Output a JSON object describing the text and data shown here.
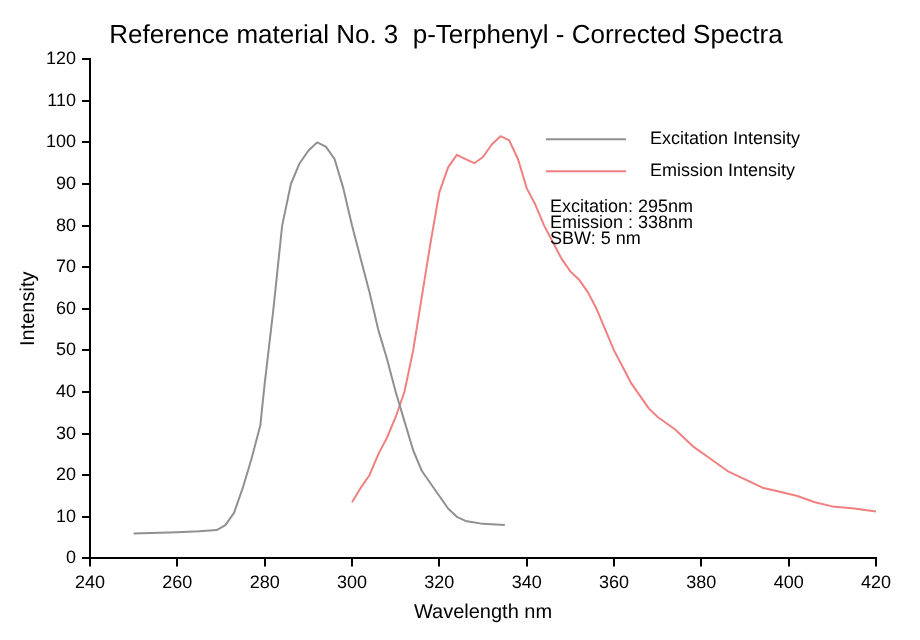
{
  "chart_data": {
    "type": "line",
    "title": "Reference material No. 3  p-Terphenyl - Corrected Spectra",
    "xlabel": "Wavelength nm",
    "ylabel": "Intensity",
    "annotations": [
      "Excitation: 295nm\nEmission : 338nm\nSBW: 5 nm"
    ],
    "xlim": [
      240,
      420
    ],
    "xticks": [
      240,
      260,
      280,
      300,
      320,
      340,
      360,
      380,
      400,
      420
    ],
    "ylim": [
      0,
      120
    ],
    "yticks": [
      0,
      10,
      20,
      30,
      40,
      50,
      60,
      70,
      80,
      90,
      100,
      110,
      120
    ],
    "grid": false,
    "legend": "top right",
    "marker": "none",
    "line_style": "solid",
    "series": [
      {
        "name": "Excitation Intensity",
        "color": "#909090",
        "x": [
          250,
          260,
          265,
          269,
          271,
          273,
          275,
          277,
          279,
          280,
          282,
          284,
          286,
          288,
          290,
          292,
          294,
          296,
          298,
          300,
          302,
          304,
          306,
          308,
          310,
          312,
          314,
          316,
          318,
          320,
          322,
          324,
          326,
          330,
          335
        ],
        "values": [
          6,
          6.3,
          6.5,
          6.8,
          8,
          11,
          17,
          24,
          32,
          42,
          60,
          80,
          90,
          95,
          98,
          100,
          99,
          96,
          89,
          80,
          72,
          64,
          55,
          48,
          40,
          33,
          26,
          21,
          18,
          15,
          12,
          10,
          9,
          8.3,
          8
        ]
      },
      {
        "name": "Emission Intensity",
        "color": "#f08080",
        "x": [
          300,
          302,
          304,
          306,
          308,
          310,
          312,
          314,
          316,
          318,
          320,
          322,
          324,
          326,
          328,
          330,
          332,
          334,
          336,
          338,
          340,
          342,
          344,
          346,
          348,
          350,
          352,
          354,
          356,
          358,
          360,
          362,
          364,
          366,
          368,
          370,
          374,
          378,
          382,
          386,
          390,
          394,
          398,
          402,
          406,
          410,
          415,
          420
        ],
        "values": [
          13.5,
          17,
          20,
          25,
          29,
          34,
          40,
          50,
          63,
          76,
          88,
          94,
          97,
          96,
          95,
          96.5,
          99.5,
          101.5,
          100.5,
          96,
          89,
          85,
          80,
          76,
          72,
          69,
          67,
          64,
          60,
          55,
          50,
          46,
          42,
          39,
          36,
          34,
          31,
          27,
          24,
          21,
          19,
          17,
          16,
          15,
          13.5,
          12.5,
          12,
          11.3
        ]
      }
    ]
  }
}
